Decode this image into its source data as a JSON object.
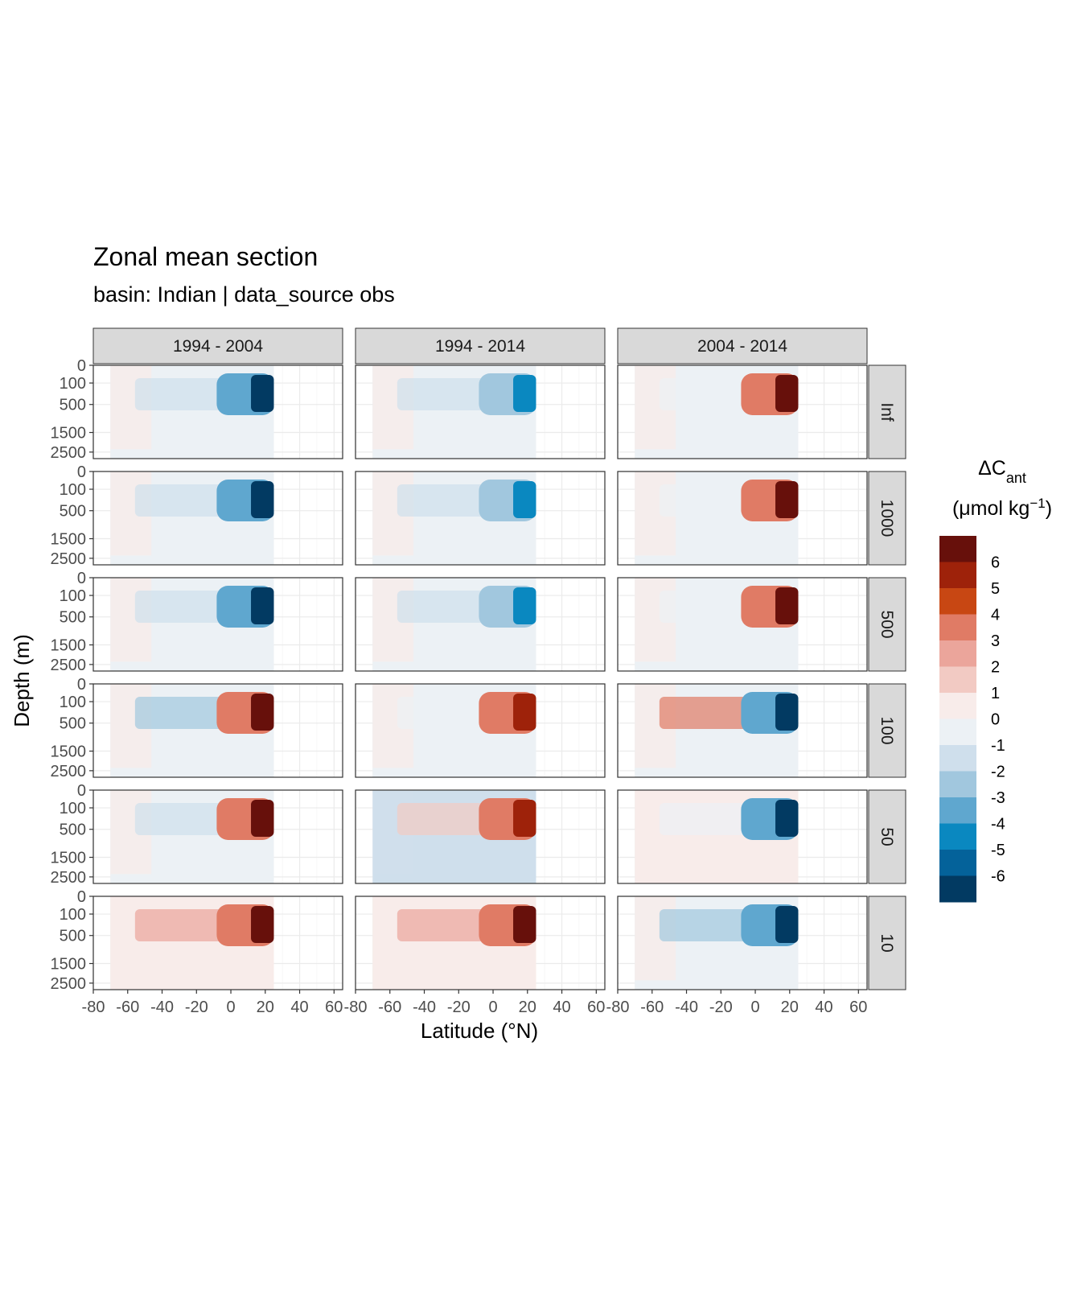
{
  "title": "Zonal mean section",
  "subtitle": "basin: Indian | data_source obs",
  "chart_data": {
    "type": "heatmap",
    "facet_columns": [
      "1994 - 2004",
      "1994 - 2014",
      "2004 - 2014"
    ],
    "facet_rows": [
      "Inf",
      "1000",
      "500",
      "100",
      "50",
      "10"
    ],
    "xlabel": "Latitude (°N)",
    "ylabel": "Depth (m)",
    "x_ticks": [
      "-80",
      "-60",
      "-40",
      "-20",
      "0",
      "20",
      "40",
      "60"
    ],
    "y_ticks": [
      "0",
      "100",
      "500",
      "1500",
      "2500"
    ],
    "x_tick_values": [
      -80,
      -60,
      -40,
      -20,
      0,
      20,
      40,
      60
    ],
    "y_tick_values": [
      0,
      100,
      500,
      1500,
      2500
    ],
    "xlim": [
      -80,
      65
    ],
    "ylim": [
      3000,
      0
    ],
    "data_lat_range": [
      -70,
      25
    ],
    "legend": {
      "title_main": "ΔC",
      "title_sub": "ant",
      "title_unit_open": "(μmol kg",
      "title_unit_sup": "−1",
      "title_unit_close": ")",
      "labels": [
        "6",
        "5",
        "4",
        "3",
        "2",
        "1",
        "0",
        "-1",
        "-2",
        "-3",
        "-4",
        "-5",
        "-6"
      ],
      "colors": [
        "#67100b",
        "#9e220a",
        "#c84713",
        "#e07b65",
        "#eba59b",
        "#f2cac3",
        "#f8ecea",
        "#ecf1f5",
        "#cfdfec",
        "#a1c7de",
        "#5fa7cf",
        "#0a88c0",
        "#04629a",
        "#023a62"
      ],
      "position": "right"
    },
    "panels": [
      {
        "row": "Inf",
        "col": "1994 - 2004",
        "surface": -6,
        "intermediate": -1,
        "deep": 0
      },
      {
        "row": "Inf",
        "col": "1994 - 2014",
        "surface": -4,
        "intermediate": -1,
        "deep": 0
      },
      {
        "row": "Inf",
        "col": "2004 - 2014",
        "surface": 6,
        "intermediate": 0,
        "deep": 0
      },
      {
        "row": "1000",
        "col": "1994 - 2004",
        "surface": -6,
        "intermediate": -1,
        "deep": 0
      },
      {
        "row": "1000",
        "col": "1994 - 2014",
        "surface": -4,
        "intermediate": -1,
        "deep": 0
      },
      {
        "row": "1000",
        "col": "2004 - 2014",
        "surface": 6,
        "intermediate": 0,
        "deep": 0
      },
      {
        "row": "500",
        "col": "1994 - 2004",
        "surface": -6,
        "intermediate": -1,
        "deep": 0
      },
      {
        "row": "500",
        "col": "1994 - 2014",
        "surface": -4,
        "intermediate": -1,
        "deep": 0
      },
      {
        "row": "500",
        "col": "2004 - 2014",
        "surface": 6,
        "intermediate": 0,
        "deep": 0
      },
      {
        "row": "100",
        "col": "1994 - 2004",
        "surface": 6,
        "intermediate": -2,
        "deep": 0
      },
      {
        "row": "100",
        "col": "1994 - 2014",
        "surface": 5,
        "intermediate": 0,
        "deep": 0
      },
      {
        "row": "100",
        "col": "2004 - 2014",
        "surface": -6,
        "intermediate": 3,
        "deep": 0
      },
      {
        "row": "50",
        "col": "1994 - 2004",
        "surface": 6,
        "intermediate": -1,
        "deep": 0
      },
      {
        "row": "50",
        "col": "1994 - 2014",
        "surface": 5,
        "intermediate": 1,
        "deep": -1
      },
      {
        "row": "50",
        "col": "2004 - 2014",
        "surface": -6,
        "intermediate": 0,
        "deep": 1
      },
      {
        "row": "10",
        "col": "1994 - 2004",
        "surface": 6,
        "intermediate": 2,
        "deep": 1
      },
      {
        "row": "10",
        "col": "1994 - 2014",
        "surface": 6,
        "intermediate": 2,
        "deep": 1
      },
      {
        "row": "10",
        "col": "2004 - 2014",
        "surface": -6,
        "intermediate": -2,
        "deep": 0
      }
    ]
  }
}
